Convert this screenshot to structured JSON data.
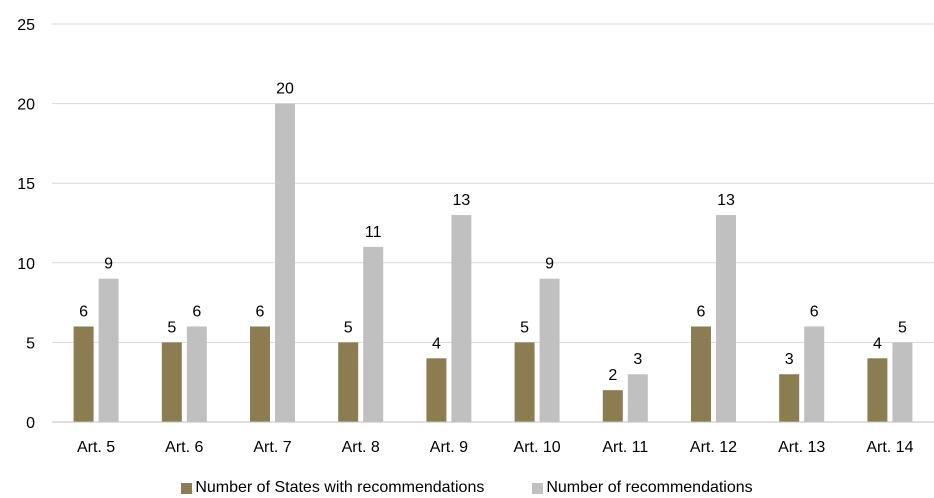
{
  "chart_data": {
    "type": "bar",
    "categories": [
      "Art. 5",
      "Art. 6",
      "Art. 7",
      "Art. 8",
      "Art. 9",
      "Art. 10",
      "Art. 11",
      "Art. 12",
      "Art. 13",
      "Art. 14"
    ],
    "series": [
      {
        "name": "Number of States with recommendations",
        "values": [
          6,
          5,
          6,
          5,
          4,
          5,
          2,
          6,
          3,
          4
        ],
        "color": "#8b7d4f"
      },
      {
        "name": "Number of recommendations",
        "values": [
          9,
          6,
          20,
          11,
          13,
          9,
          3,
          13,
          6,
          5
        ],
        "color": "#c0c0c0"
      }
    ],
    "yticks": [
      "0",
      "5",
      "10",
      "15",
      "20",
      "25"
    ],
    "ylim": [
      0,
      25
    ],
    "grid": true,
    "legend_position": "bottom"
  }
}
